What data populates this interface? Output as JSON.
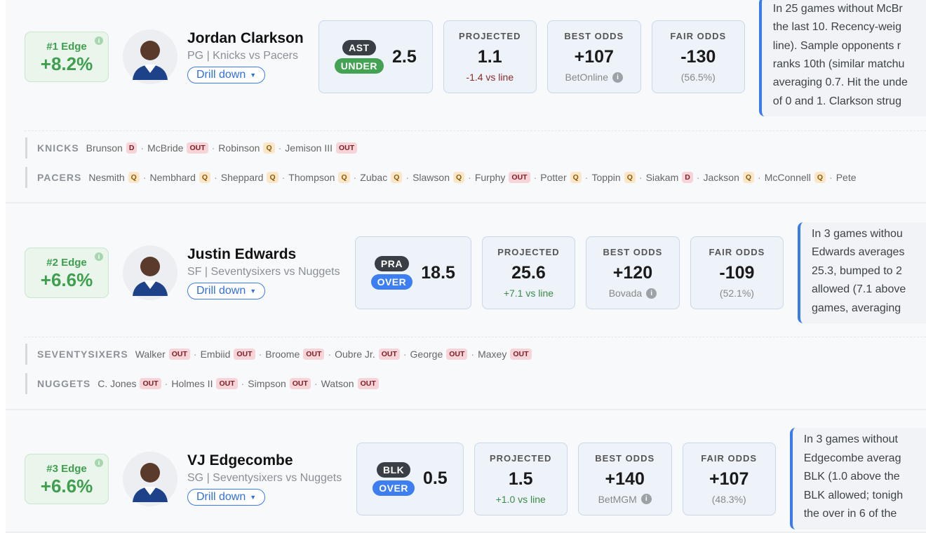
{
  "cards": [
    {
      "edge_rank": "#1 Edge",
      "edge_value": "+8.2%",
      "player": "Jordan Clarkson",
      "position": "PG",
      "matchup": "Knicks vs Pacers",
      "drill": "Drill down",
      "market": "AST",
      "side": "UNDER",
      "line": "2.5",
      "projected_label": "PROJECTED",
      "projected": "1.1",
      "projected_diff": "-1.4 vs line",
      "best_label": "BEST ODDS",
      "best_odds": "+107",
      "book": "BetOnline",
      "fair_label": "FAIR ODDS",
      "fair_odds": "-130",
      "fair_pct": "(56.5%)",
      "note_lines": [
        "In 25 games without McBr",
        "the last 10. Recency-weig",
        "line). Sample opponents r",
        "ranks 10th (similar matchu",
        "averaging 0.7. Hit the unde",
        "of 0 and 1. Clarkson strug"
      ],
      "teams": [
        {
          "name": "KNICKS",
          "players": [
            {
              "n": "Brunson",
              "s": "D"
            },
            {
              "n": "McBride",
              "s": "OUT"
            },
            {
              "n": "Robinson",
              "s": "Q"
            },
            {
              "n": "Jemison III",
              "s": "OUT"
            }
          ]
        },
        {
          "name": "PACERS",
          "players": [
            {
              "n": "Nesmith",
              "s": "Q"
            },
            {
              "n": "Nembhard",
              "s": "Q"
            },
            {
              "n": "Sheppard",
              "s": "Q"
            },
            {
              "n": "Thompson",
              "s": "Q"
            },
            {
              "n": "Zubac",
              "s": "Q"
            },
            {
              "n": "Slawson",
              "s": "Q"
            },
            {
              "n": "Furphy",
              "s": "OUT"
            },
            {
              "n": "Potter",
              "s": "Q"
            },
            {
              "n": "Toppin",
              "s": "Q"
            },
            {
              "n": "Siakam",
              "s": "D"
            },
            {
              "n": "Jackson",
              "s": "Q"
            },
            {
              "n": "McConnell",
              "s": "Q"
            },
            {
              "n": "Pete",
              "s": ""
            }
          ]
        }
      ]
    },
    {
      "edge_rank": "#2 Edge",
      "edge_value": "+6.6%",
      "player": "Justin Edwards",
      "position": "SF",
      "matchup": "Seventysixers vs Nuggets",
      "drill": "Drill down",
      "market": "PRA",
      "side": "OVER",
      "line": "18.5",
      "projected_label": "PROJECTED",
      "projected": "25.6",
      "projected_diff": "+7.1 vs line",
      "best_label": "BEST ODDS",
      "best_odds": "+120",
      "book": "Bovada",
      "fair_label": "FAIR ODDS",
      "fair_odds": "-109",
      "fair_pct": "(52.1%)",
      "note_lines": [
        "In 3 games withou",
        "Edwards averages",
        "25.3, bumped to 2",
        "allowed (7.1 above",
        "games, averaging"
      ],
      "teams": [
        {
          "name": "SEVENTYSIXERS",
          "players": [
            {
              "n": "Walker",
              "s": "OUT"
            },
            {
              "n": "Embiid",
              "s": "OUT"
            },
            {
              "n": "Broome",
              "s": "OUT"
            },
            {
              "n": "Oubre Jr.",
              "s": "OUT"
            },
            {
              "n": "George",
              "s": "OUT"
            },
            {
              "n": "Maxey",
              "s": "OUT"
            }
          ]
        },
        {
          "name": "NUGGETS",
          "players": [
            {
              "n": "C. Jones",
              "s": "OUT"
            },
            {
              "n": "Holmes II",
              "s": "OUT"
            },
            {
              "n": "Simpson",
              "s": "OUT"
            },
            {
              "n": "Watson",
              "s": "OUT"
            }
          ]
        }
      ]
    },
    {
      "edge_rank": "#3 Edge",
      "edge_value": "+6.6%",
      "player": "VJ Edgecombe",
      "position": "SG",
      "matchup": "Seventysixers vs Nuggets",
      "drill": "Drill down",
      "market": "BLK",
      "side": "OVER",
      "line": "0.5",
      "projected_label": "PROJECTED",
      "projected": "1.5",
      "projected_diff": "+1.0 vs line",
      "best_label": "BEST ODDS",
      "best_odds": "+140",
      "book": "BetMGM",
      "fair_label": "FAIR ODDS",
      "fair_odds": "+107",
      "fair_pct": "(48.3%)",
      "note_lines": [
        "In 3 games without",
        "Edgecombe averag",
        "BLK (1.0 above the",
        "BLK allowed; tonigh",
        "the over in 6 of the"
      ],
      "teams": []
    }
  ],
  "colors": {
    "edge_green": "#3f9f4f",
    "under": "#43a352",
    "over": "#3d7ff2",
    "accent": "#3a7af0"
  }
}
